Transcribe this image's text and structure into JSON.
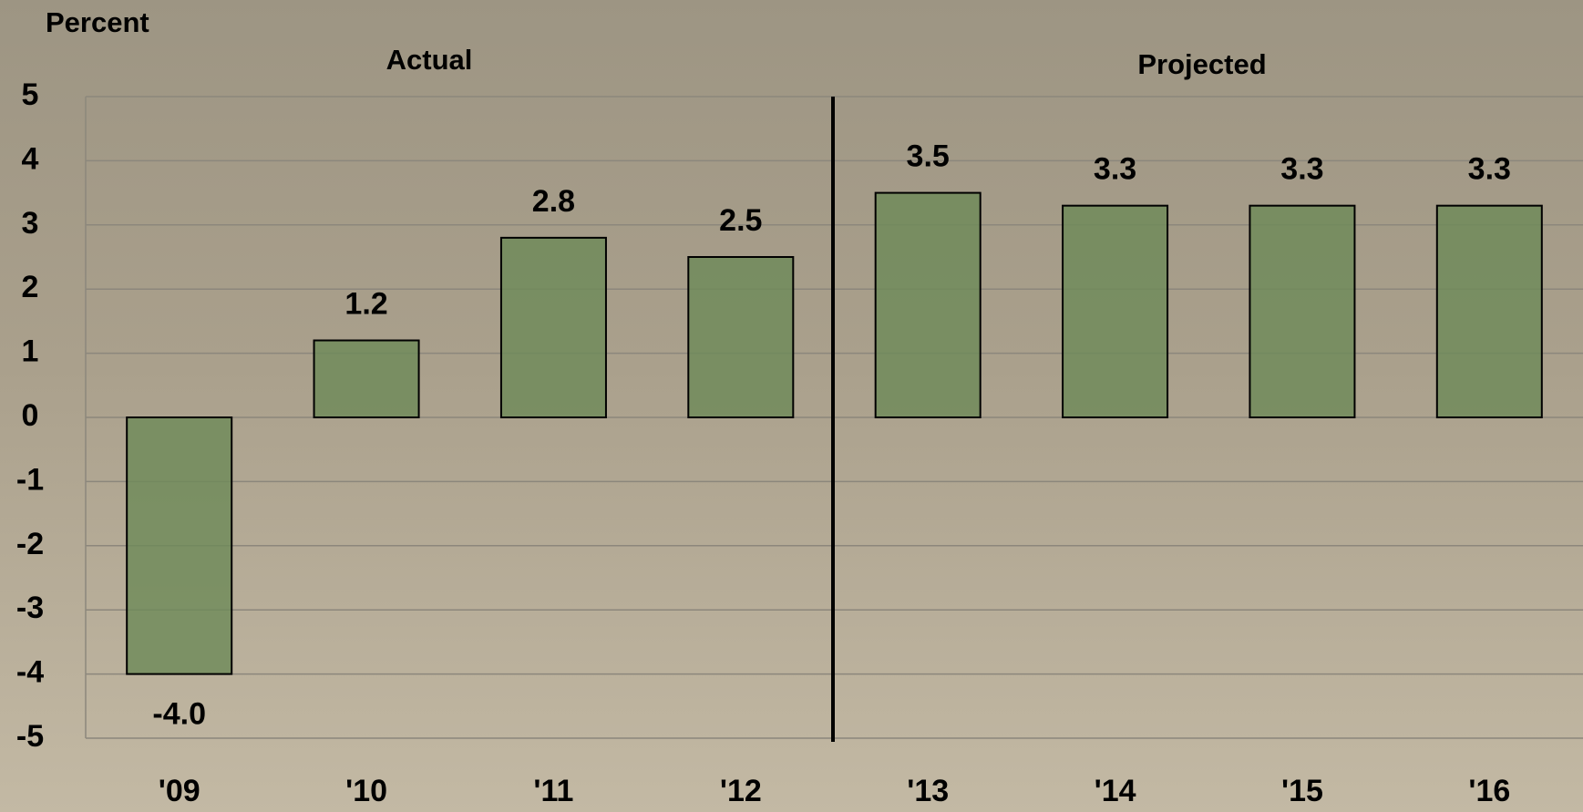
{
  "chart_data": {
    "type": "bar",
    "y_label": "Percent",
    "annotations": [
      "Actual",
      "Projected"
    ],
    "categories": [
      "'09",
      "'10",
      "'11",
      "'12",
      "'13",
      "'14",
      "'15",
      "'16"
    ],
    "values": [
      -4.0,
      1.2,
      2.8,
      2.5,
      3.5,
      3.3,
      3.3,
      3.3
    ],
    "value_labels": [
      "-4.0",
      "1.2",
      "2.8",
      "2.5",
      "3.5",
      "3.3",
      "3.3",
      "3.3"
    ],
    "color": "#6d8a58",
    "ylim": [
      -5,
      5
    ],
    "yticks": [
      -5,
      -4,
      -3,
      -2,
      -1,
      0,
      1,
      2,
      3,
      4,
      5
    ],
    "grid": true
  }
}
